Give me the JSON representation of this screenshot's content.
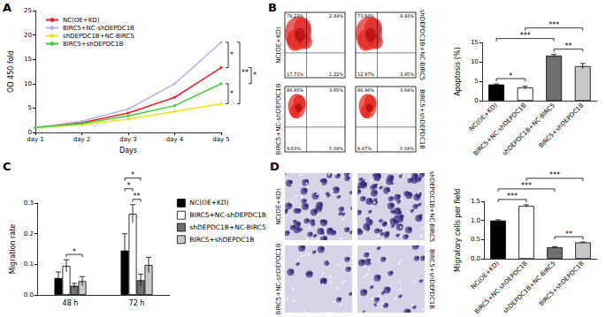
{
  "panel_labels": [
    "A",
    "B",
    "C",
    "D"
  ],
  "chart_data": [
    {
      "type": "line",
      "xlabel": "Days",
      "ylabel": "OD 450 fold",
      "categories": [
        "day 1",
        "day 2",
        "day 3",
        "day 4",
        "day 5"
      ],
      "series": [
        {
          "name": "NC(OE+KD)",
          "color": "#e8202a",
          "values": [
            1,
            2.0,
            4.0,
            7.2,
            13.3
          ]
        },
        {
          "name": "BIRC5+NC-shDEPDC1B",
          "color": "#b7b2ee",
          "values": [
            1,
            2.3,
            4.8,
            10.0,
            18.5
          ]
        },
        {
          "name": "shDEPDC1B+NC-BIRC5",
          "color": "#f2e01c",
          "values": [
            1,
            1.6,
            2.7,
            4.3,
            5.9
          ]
        },
        {
          "name": "BIRC5+shDEPDC1B",
          "color": "#3fcf3a",
          "values": [
            1,
            1.8,
            3.4,
            5.5,
            10.0
          ]
        }
      ],
      "marker": "circle",
      "ylim": [
        0,
        25
      ],
      "yticks": [
        0,
        5,
        10,
        15,
        20,
        25
      ],
      "grid": false,
      "legend": "upper left",
      "annotations": [
        {
          "text": "*",
          "between": [
            "BIRC5+NC-shDEPDC1B",
            "NC(OE+KD)"
          ]
        },
        {
          "text": "*",
          "between": [
            "BIRC5+shDEPDC1B",
            "shDEPDC1B+NC-BIRC5"
          ]
        },
        {
          "text": "**",
          "between": [
            "BIRC5+NC-shDEPDC1B",
            "shDEPDC1B+NC-BIRC5"
          ]
        },
        {
          "text": "*",
          "between": [
            "NC(OE+KD)",
            "BIRC5+shDEPDC1B"
          ]
        }
      ]
    },
    {
      "type": "bar",
      "ylabel": "Apoptosis (%)",
      "categories": [
        "NC(OE+KD)",
        "BIRC5+NC-shDEPDC1B",
        "shDEPDC1B+NC-BIRC5",
        "BIRC5+shDEPDC1B"
      ],
      "values": [
        4.2,
        3.4,
        11.6,
        8.9
      ],
      "errors": [
        0.15,
        0.35,
        0.3,
        0.7
      ],
      "colors": [
        "#000000",
        "#ffffff",
        "#707070",
        "#c8c8c8"
      ],
      "ylim": [
        0,
        15
      ],
      "yticks": [
        0,
        5,
        10,
        15
      ],
      "grid": false,
      "annotations": [
        {
          "text": "*",
          "between": [
            "NC(OE+KD)",
            "BIRC5+NC-shDEPDC1B"
          ]
        },
        {
          "text": "**",
          "between": [
            "shDEPDC1B+NC-BIRC5",
            "BIRC5+shDEPDC1B"
          ]
        },
        {
          "text": "***",
          "between": [
            "NC(OE+KD)",
            "shDEPDC1B+NC-BIRC5"
          ]
        },
        {
          "text": "***",
          "between": [
            "BIRC5+NC-shDEPDC1B",
            "BIRC5+shDEPDC1B"
          ]
        }
      ]
    },
    {
      "type": "bar",
      "ylabel": "Migration rate",
      "categories": [
        "48 h",
        "72 h"
      ],
      "series": [
        {
          "name": "NC(OE+KD)",
          "color": "#000000",
          "values": [
            0.055,
            0.145
          ],
          "errors": [
            0.02,
            0.055
          ]
        },
        {
          "name": "BIRC5+NC-shDEPDC1B",
          "color": "#ffffff",
          "values": [
            0.095,
            0.265
          ],
          "errors": [
            0.02,
            0.03
          ]
        },
        {
          "name": "shDEPDC1B+NC-BIRC5",
          "color": "#707070",
          "values": [
            0.03,
            0.048
          ],
          "errors": [
            0.008,
            0.02
          ]
        },
        {
          "name": "BIRC5+shDEPDC1B",
          "color": "#c8c8c8",
          "values": [
            0.045,
            0.098
          ],
          "errors": [
            0.015,
            0.025
          ]
        }
      ],
      "ylim": [
        0,
        0.3
      ],
      "yticks": [
        {
          "value": 0,
          "label": "0.0"
        },
        0.1,
        0.2,
        0.3
      ],
      "grid": false,
      "legend": "right",
      "annotations": [
        {
          "text": "*",
          "category": "48 h",
          "between": [
            "BIRC5+NC-shDEPDC1B",
            "BIRC5+shDEPDC1B"
          ]
        },
        {
          "text": "**",
          "category": "72 h",
          "between": [
            "BIRC5+NC-shDEPDC1B",
            "shDEPDC1B+NC-BIRC5"
          ]
        },
        {
          "text": "*",
          "category": "72 h",
          "between": [
            "NC(OE+KD)",
            "BIRC5+NC-shDEPDC1B"
          ]
        },
        {
          "text": "*",
          "category": "72 h",
          "between": [
            "NC(OE+KD)",
            "shDEPDC1B+NC-BIRC5"
          ]
        }
      ]
    },
    {
      "type": "bar",
      "ylabel": "Migratory cells per field",
      "categories": [
        "NC(OE+KD)",
        "BIRC5+NC-shDEPDC1B",
        "shDEPDC1B+NC-BIRC5",
        "BIRC5+shDEPDC1B"
      ],
      "values": [
        1.0,
        1.38,
        0.3,
        0.43
      ],
      "errors": [
        0.02,
        0.03,
        0.02,
        0.01
      ],
      "colors": [
        "#000000",
        "#ffffff",
        "#707070",
        "#c8c8c8"
      ],
      "ylim": [
        0,
        1.5
      ],
      "yticks": [
        {
          "value": 0,
          "label": "0.0"
        },
        0.5,
        {
          "value": 1,
          "label": "1.0"
        },
        1.5
      ],
      "grid": false,
      "annotations": [
        {
          "text": "**",
          "between": [
            "shDEPDC1B+NC-BIRC5",
            "BIRC5+shDEPDC1B"
          ]
        },
        {
          "text": "***",
          "between": [
            "NC(OE+KD)",
            "BIRC5+NC-shDEPDC1B"
          ]
        },
        {
          "text": "***",
          "between": [
            "NC(OE+KD)",
            "shDEPDC1B+NC-BIRC5"
          ]
        },
        {
          "text": "***",
          "between": [
            "BIRC5+NC-shDEPDC1B",
            "BIRC5+shDEPDC1B"
          ]
        }
      ]
    }
  ],
  "flow_plots": [
    {
      "label": "NC(OE+KD)",
      "quadrants": [
        "78.23%",
        "2.84%",
        "17.71%",
        "1.22%"
      ]
    },
    {
      "label": "shDEPDC1B+NC-BIRC5",
      "quadrants": [
        "73.60%",
        "9.93%",
        "12.97%",
        "3.45%"
      ]
    },
    {
      "label": "BIRC5+NC-shDEPDC1B",
      "quadrants": [
        "86.95%",
        "3.65%",
        "9.63%",
        "0.04%"
      ]
    },
    {
      "label": "BIRC5+shDEPDC1B",
      "quadrants": [
        "86.96%",
        "3.64%",
        "8.47%",
        "0.04%"
      ]
    }
  ],
  "micrographs": [
    {
      "label": "NC(OE+KD)"
    },
    {
      "label": "shDEPDC1B+NC-BIRC5"
    },
    {
      "label": "BIRC5+NC-shDEPDC1B"
    },
    {
      "label": "BIRC5+shDEPDC1B"
    }
  ]
}
